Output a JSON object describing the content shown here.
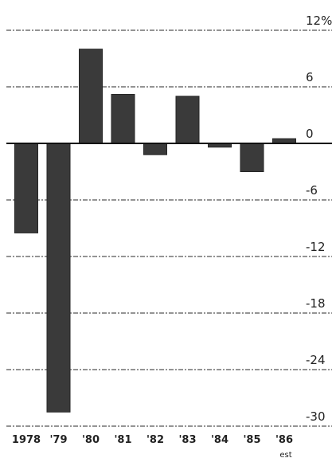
{
  "chart_data": {
    "type": "bar",
    "categories": [
      "1978",
      "'79",
      "'80",
      "'81",
      "'82",
      "'83",
      "'84",
      "'85",
      "'86"
    ],
    "category_note": {
      "index": 8,
      "text": "est"
    },
    "values": [
      -9.5,
      -28.5,
      10.0,
      5.2,
      -1.2,
      5.0,
      -0.4,
      -3.0,
      0.5
    ],
    "yticks": [
      12,
      6,
      0,
      -6,
      -12,
      -18,
      -24,
      -30
    ],
    "ytick_labels": [
      "12%",
      "6",
      "0",
      "-6",
      "-12",
      "-18",
      "-24",
      "-30"
    ],
    "ylim": [
      -30,
      12
    ],
    "grid": true,
    "title": "",
    "xlabel": "",
    "ylabel": "",
    "colors": {
      "bar": "#3a3a3a",
      "grid": "#555555",
      "text": "#222222"
    }
  }
}
